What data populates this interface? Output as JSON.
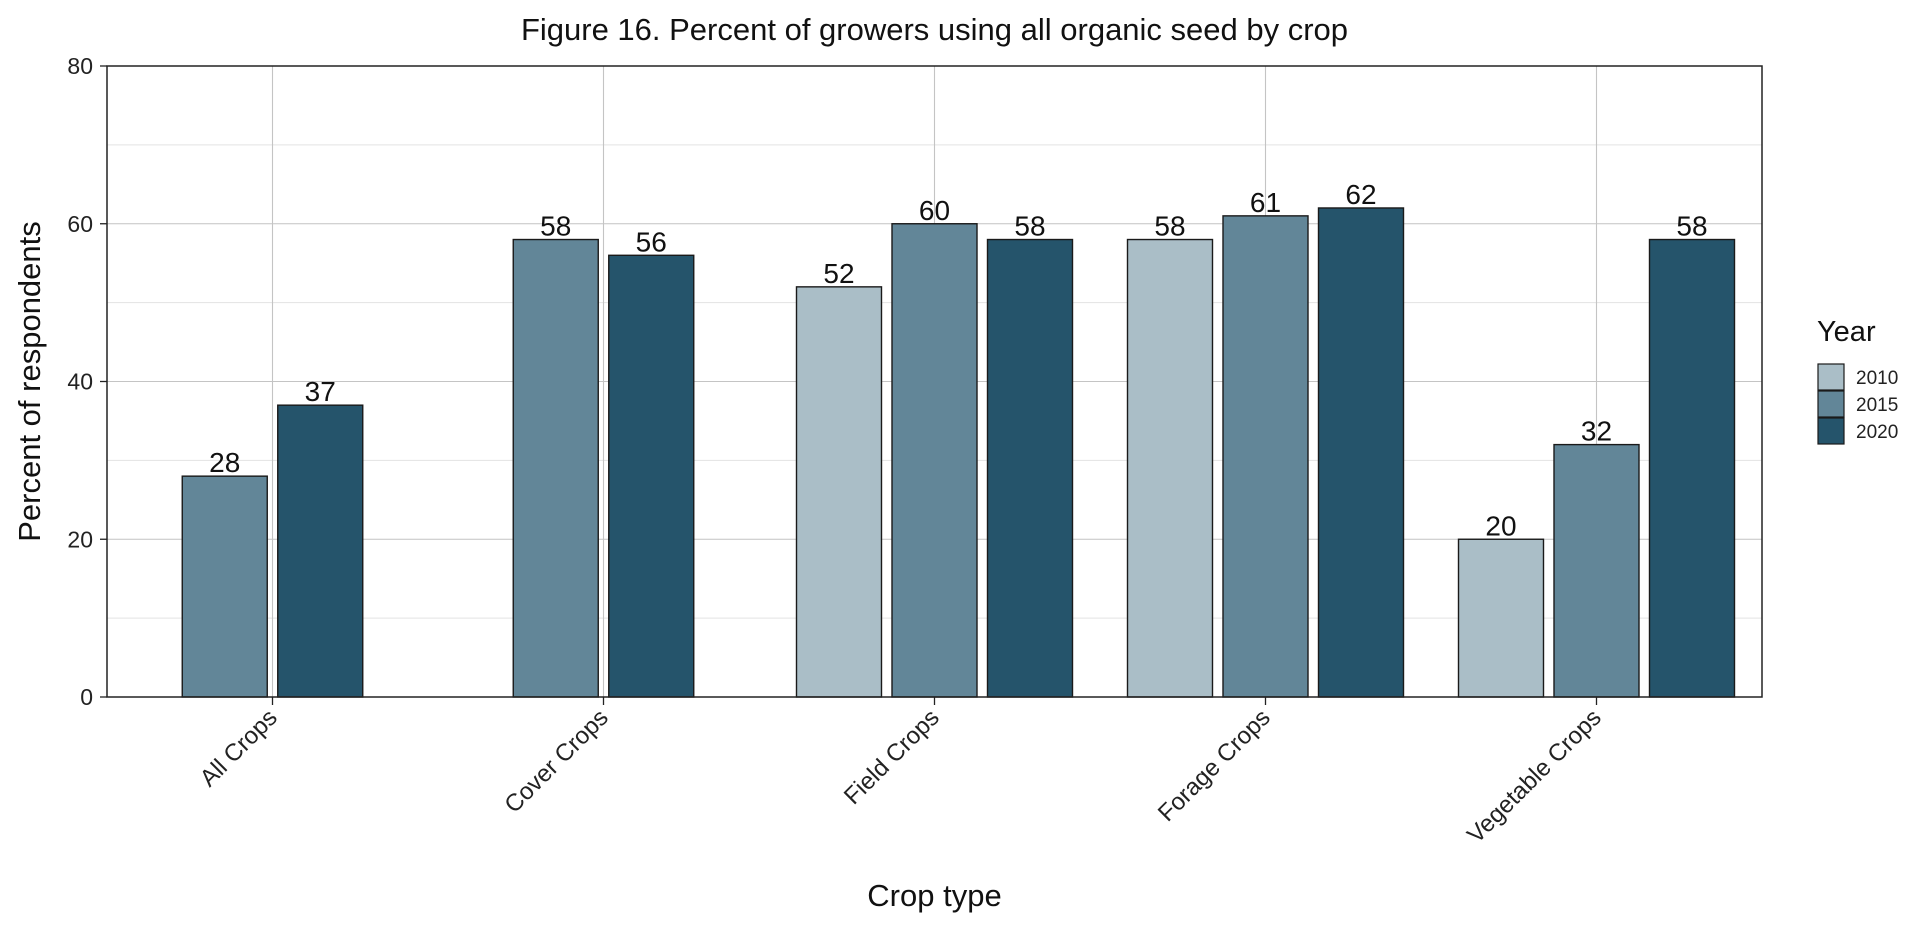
{
  "chart_data": {
    "type": "bar",
    "title": "Figure 16. Percent of growers using all organic seed by crop",
    "xlabel": "Crop type",
    "ylabel": "Percent of respondents",
    "ylim": [
      0,
      80
    ],
    "yticks": [
      0,
      20,
      40,
      60,
      80
    ],
    "grid": true,
    "legend": {
      "title": "Year",
      "position": "right"
    },
    "categories": [
      "All Crops",
      "Cover Crops",
      "Field Crops",
      "Forage Crops",
      "Vegetable Crops"
    ],
    "series": [
      {
        "name": "2010",
        "color": "#aabec7",
        "values": [
          null,
          null,
          52,
          58,
          20
        ]
      },
      {
        "name": "2015",
        "color": "#628698",
        "values": [
          28,
          58,
          60,
          61,
          32
        ]
      },
      {
        "name": "2020",
        "color": "#25546b",
        "values": [
          37,
          56,
          58,
          62,
          58
        ]
      }
    ]
  }
}
